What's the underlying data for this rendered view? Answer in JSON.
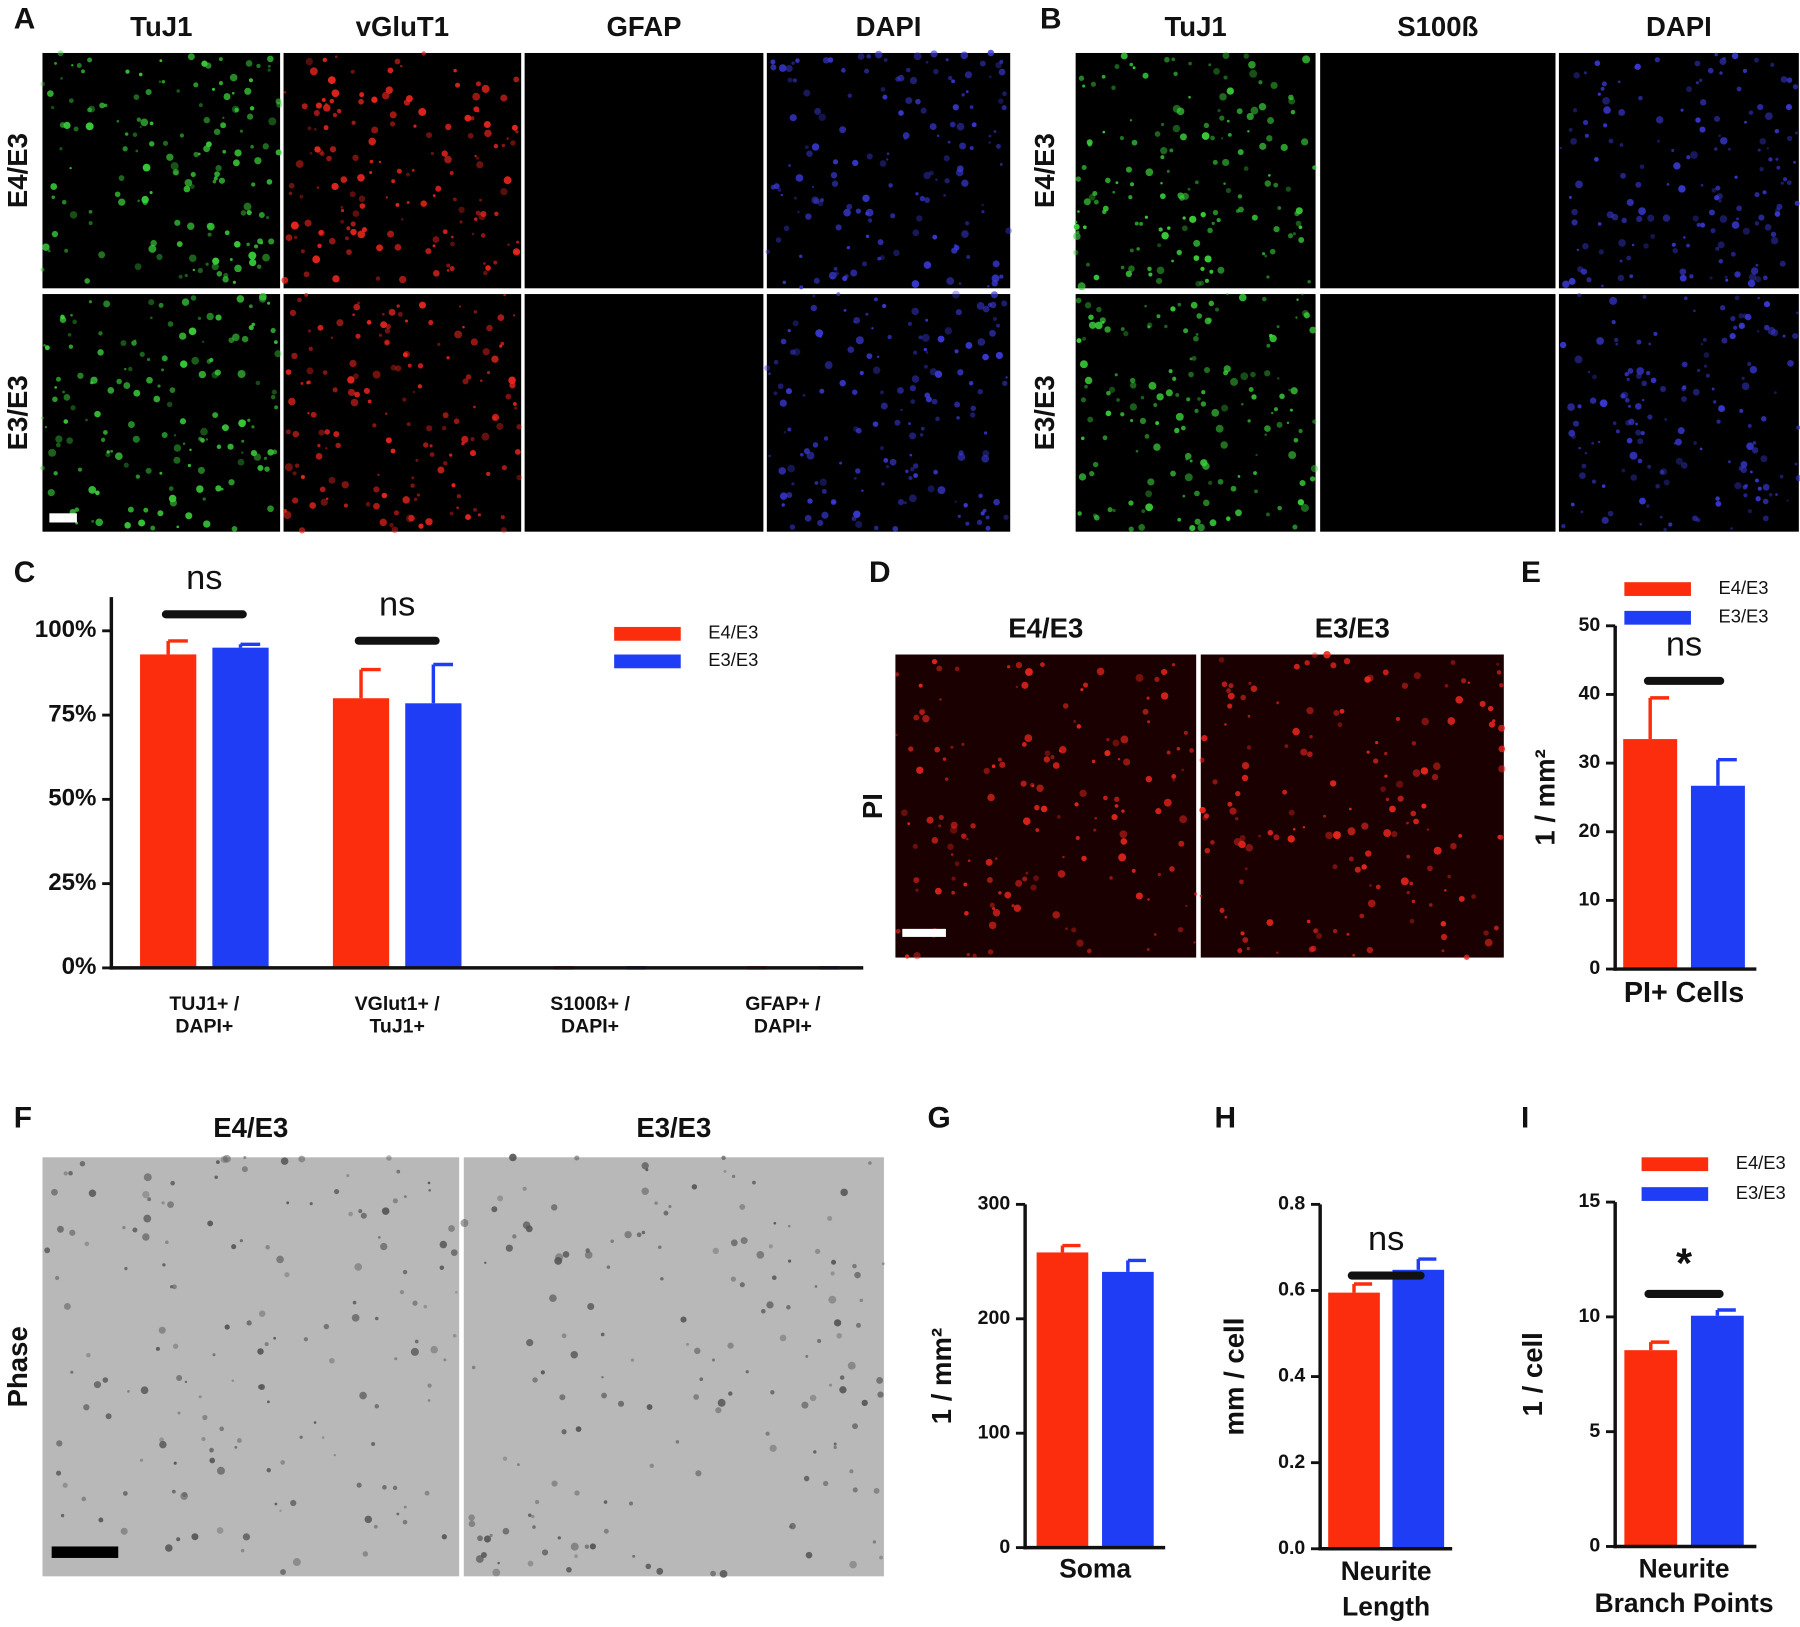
{
  "images": [
    {
      "panel": "A",
      "columns": [
        "TuJ1",
        "vGluT1",
        "GFAP",
        "DAPI"
      ],
      "rows": [
        "E4/E3",
        "E3/E3"
      ]
    },
    {
      "panel": "B",
      "columns": [
        "TuJ1",
        "S100ß",
        "DAPI"
      ],
      "rows": [
        "E4/E3",
        "E3/E3"
      ]
    },
    {
      "panel": "D",
      "columns": [
        "E4/E3",
        "E3/E3"
      ],
      "rows": [
        "PI"
      ]
    },
    {
      "panel": "F",
      "columns": [
        "E4/E3",
        "E3/E3"
      ],
      "rows": [
        "Phase"
      ]
    }
  ],
  "chart_data": [
    {
      "type": "bar",
      "panel": "C",
      "categories": [
        [
          "TUJ1+ /",
          "DAPI+"
        ],
        [
          "VGlut1+ /",
          "TuJ1+"
        ],
        [
          "S100ß+ /",
          "DAPI+"
        ],
        [
          "GFAP+ /",
          "DAPI+"
        ]
      ],
      "series": [
        {
          "name": "E4/E3",
          "color": "#fb2d0c",
          "values": [
            93,
            80,
            0,
            0
          ],
          "errors": [
            4,
            8.5,
            0,
            0
          ]
        },
        {
          "name": "E3/E3",
          "color": "#1f3df5",
          "values": [
            95,
            78.5,
            0,
            0
          ],
          "errors": [
            1,
            11.5,
            0,
            0
          ]
        }
      ],
      "significance": [
        "ns",
        "ns",
        null,
        null
      ],
      "ylim": [
        0,
        110
      ],
      "yticks": [
        {
          "value": 0,
          "label": "0%"
        },
        {
          "value": 25,
          "label": "25%"
        },
        {
          "value": 50,
          "label": "50%"
        },
        {
          "value": 75,
          "label": "75%"
        },
        {
          "value": 100,
          "label": "100%"
        }
      ],
      "legend": "upper right"
    },
    {
      "type": "bar",
      "panel": "E",
      "ylabel": "1 / mm²",
      "categories": [
        [
          "PI+ Cells"
        ]
      ],
      "series": [
        {
          "name": "E4/E3",
          "color": "#fb2d0c",
          "values": [
            33.5
          ],
          "errors": [
            6
          ]
        },
        {
          "name": "E3/E3",
          "color": "#1f3df5",
          "values": [
            26.7
          ],
          "errors": [
            3.8
          ]
        }
      ],
      "significance": [
        "ns"
      ],
      "ylim": [
        0,
        50
      ],
      "yticks": [
        0,
        10,
        20,
        30,
        40,
        50
      ],
      "legend": "upper right"
    },
    {
      "type": "bar",
      "panel": "G",
      "ylabel": "1 / mm²",
      "categories": [
        [
          "Soma"
        ]
      ],
      "series": [
        {
          "color": "#fb2d0c",
          "values": [
            258
          ],
          "errors": [
            6
          ]
        },
        {
          "color": "#1f3df5",
          "values": [
            241
          ],
          "errors": [
            10
          ]
        }
      ],
      "ylim": [
        0,
        300
      ],
      "yticks": [
        0,
        100,
        200,
        300
      ]
    },
    {
      "type": "bar",
      "panel": "H",
      "ylabel": "mm / cell",
      "categories": [
        [
          "Neurite",
          "Length"
        ]
      ],
      "series": [
        {
          "color": "#fb2d0c",
          "values": [
            0.595
          ],
          "errors": [
            0.02
          ]
        },
        {
          "color": "#1f3df5",
          "values": [
            0.648
          ],
          "errors": [
            0.025
          ]
        }
      ],
      "significance": [
        "ns"
      ],
      "ylim": [
        0,
        0.8
      ],
      "yticks": [
        {
          "value": 0,
          "label": "0.0"
        },
        0.2,
        0.4,
        0.6,
        0.8
      ]
    },
    {
      "type": "bar",
      "panel": "I",
      "ylabel": "1 / cell",
      "categories": [
        [
          "Neurite",
          "Branch Points"
        ]
      ],
      "series": [
        {
          "name": "E4/E3",
          "color": "#fb2d0c",
          "values": [
            8.55
          ],
          "errors": [
            0.35
          ]
        },
        {
          "name": "E3/E3",
          "color": "#1f3df5",
          "values": [
            10.05
          ],
          "errors": [
            0.25
          ]
        }
      ],
      "significance": [
        "*"
      ],
      "ylim": [
        0,
        15
      ],
      "yticks": [
        0,
        5,
        10,
        15
      ],
      "legend": "upper right"
    }
  ]
}
